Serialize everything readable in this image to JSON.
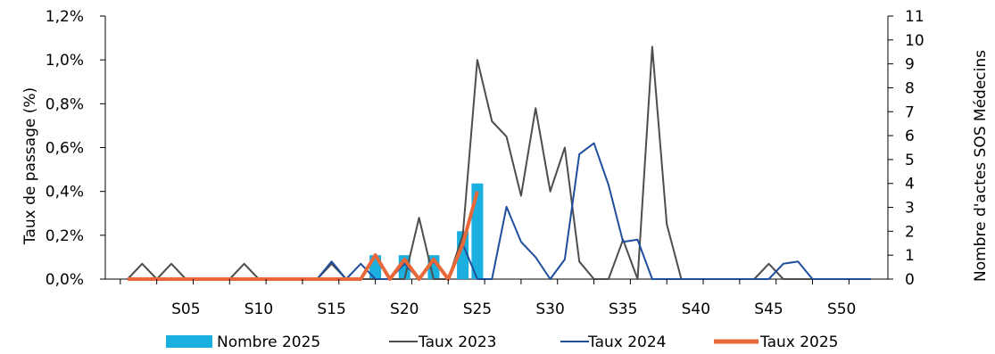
{
  "chart_data": {
    "type": "bar",
    "x_ticks": [
      "S05",
      "S10",
      "S15",
      "S20",
      "S25",
      "S30",
      "S35",
      "S40",
      "S45",
      "S50"
    ],
    "weeks": [
      1,
      2,
      3,
      4,
      5,
      6,
      7,
      8,
      9,
      10,
      11,
      12,
      13,
      14,
      15,
      16,
      17,
      18,
      19,
      20,
      21,
      22,
      23,
      24,
      25,
      26,
      27,
      28,
      29,
      30,
      31,
      32,
      33,
      34,
      35,
      36,
      37,
      38,
      39,
      40,
      41,
      42,
      43,
      44,
      45,
      46,
      47,
      48,
      49,
      50,
      51,
      52
    ],
    "y_left": {
      "label": "Taux de passage (%)",
      "ylim": [
        0,
        1.2
      ],
      "ticks": [
        0,
        0.2,
        0.4,
        0.6,
        0.8,
        1.0,
        1.2
      ],
      "tick_labels": [
        "0,0%",
        "0,2%",
        "0,4%",
        "0,6%",
        "0,8%",
        "1,0%",
        "1,2%"
      ]
    },
    "y_right": {
      "label": "Nombre d'actes SOS Médecins",
      "ylim": [
        0,
        11
      ],
      "ticks": [
        0,
        1,
        2,
        3,
        4,
        5,
        6,
        7,
        8,
        9,
        10,
        11
      ],
      "tick_labels": [
        "0",
        "1",
        "2",
        "3",
        "4",
        "5",
        "6",
        "7",
        "8",
        "9",
        "10",
        "11"
      ]
    },
    "series": [
      {
        "name": "Nombre 2025",
        "kind": "bar",
        "axis": "right",
        "color": "#1aafdf",
        "values": [
          0,
          0,
          0,
          0,
          0,
          0,
          0,
          0,
          0,
          0,
          0,
          0,
          0,
          0,
          0,
          0,
          0,
          1,
          0,
          1,
          0,
          1,
          0,
          2,
          4
        ]
      },
      {
        "name": "Taux 2023",
        "kind": "line",
        "axis": "left",
        "color": "#4d4d4d",
        "values": [
          0,
          0.07,
          0,
          0.07,
          0,
          0,
          0,
          0,
          0.07,
          0,
          0,
          0,
          0,
          0,
          0.07,
          0,
          0,
          0,
          0,
          0,
          0.28,
          0,
          0,
          0.2,
          1.0,
          0.72,
          0.65,
          0.38,
          0.78,
          0.4,
          0.6,
          0.08,
          0,
          0,
          0.18,
          0,
          1.06,
          0.25,
          0,
          0,
          0,
          0,
          0,
          0,
          0.07,
          0,
          0,
          0,
          0,
          0,
          0,
          0
        ]
      },
      {
        "name": "Taux 2024",
        "kind": "line",
        "axis": "left",
        "color": "#1f4e9c",
        "values": [
          0,
          0,
          0,
          0,
          0,
          0,
          0,
          0,
          0,
          0,
          0,
          0,
          0,
          0,
          0.08,
          0,
          0.07,
          0,
          0,
          0.07,
          0,
          0.08,
          0,
          0.16,
          0,
          0,
          0.33,
          0.17,
          0.1,
          0,
          0.09,
          0.57,
          0.62,
          0.43,
          0.17,
          0.18,
          0,
          0,
          0,
          0,
          0,
          0,
          0,
          0,
          0,
          0.07,
          0.08,
          0,
          0,
          0,
          0,
          0
        ]
      },
      {
        "name": "Taux 2025",
        "kind": "line",
        "axis": "left",
        "color": "#e8683a",
        "values": [
          0,
          0,
          0,
          0,
          0,
          0,
          0,
          0,
          0,
          0,
          0,
          0,
          0,
          0,
          0,
          0,
          0,
          0.11,
          0,
          0.09,
          0,
          0.09,
          0,
          0.16,
          0.4
        ]
      }
    ],
    "legend_position": "bottom"
  }
}
